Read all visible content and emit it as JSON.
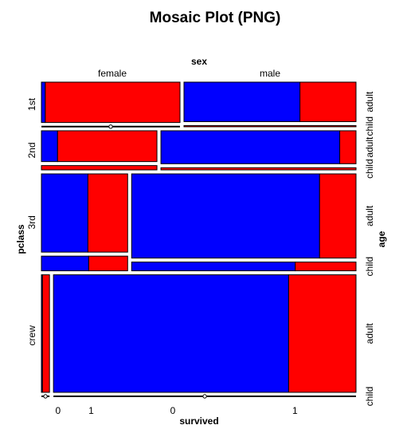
{
  "chart_data": {
    "type": "mosaic",
    "title": "Mosaic Plot (PNG)",
    "variables": {
      "top": "sex",
      "bottom": "survived",
      "left": "pclass",
      "right": "age"
    },
    "sex_levels": [
      "female",
      "male"
    ],
    "survived_levels": [
      "0",
      "1"
    ],
    "pclass_levels": [
      "1st",
      "2nd",
      "3rd",
      "crew"
    ],
    "age_levels": [
      "child",
      "adult"
    ],
    "colors": {
      "0": "#0000ff",
      "1": "#ff0000"
    },
    "counts": {
      "1st": {
        "female": {
          "child": [
            0,
            1
          ],
          "adult": [
            4,
            140
          ]
        },
        "male": {
          "child": [
            0,
            5
          ],
          "adult": [
            118,
            57
          ]
        }
      },
      "2nd": {
        "female": {
          "child": [
            0,
            13
          ],
          "adult": [
            13,
            80
          ]
        },
        "male": {
          "child": [
            0,
            11
          ],
          "adult": [
            154,
            14
          ]
        }
      },
      "3rd": {
        "female": {
          "child": [
            17,
            14
          ],
          "adult": [
            89,
            76
          ]
        },
        "male": {
          "child": [
            35,
            13
          ],
          "adult": [
            387,
            75
          ]
        }
      },
      "crew": {
        "female": {
          "child": [
            0,
            0
          ],
          "adult": [
            3,
            20
          ]
        },
        "male": {
          "child": [
            0,
            0
          ],
          "adult": [
            670,
            192
          ]
        }
      }
    }
  }
}
